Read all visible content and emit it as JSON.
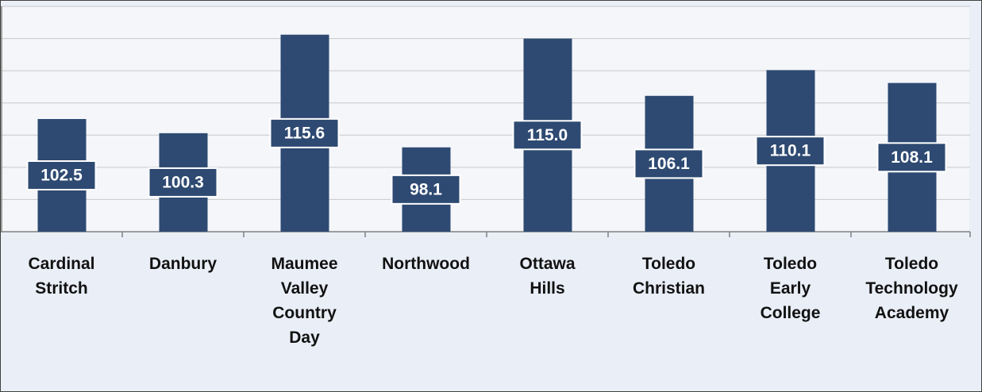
{
  "chart_data": {
    "type": "bar",
    "categories": [
      "Cardinal Stritch",
      "Danbury",
      "Maumee Valley Country Day",
      "Northwood",
      "Ottawa Hills",
      "Toledo Christian",
      "Toledo Early College",
      "Toledo Technology Academy"
    ],
    "values": [
      102.5,
      100.3,
      115.6,
      98.1,
      115.0,
      106.1,
      110.1,
      108.1
    ],
    "value_labels": [
      "102.5",
      "100.3",
      "115.6",
      "98.1",
      "115.0",
      "106.1",
      "110.1",
      "108.1"
    ],
    "color": "#2e4a72",
    "ylim": [
      85,
      120
    ],
    "yticks": [
      85,
      90,
      95,
      100,
      105,
      110,
      115,
      120
    ],
    "grid": true
  }
}
